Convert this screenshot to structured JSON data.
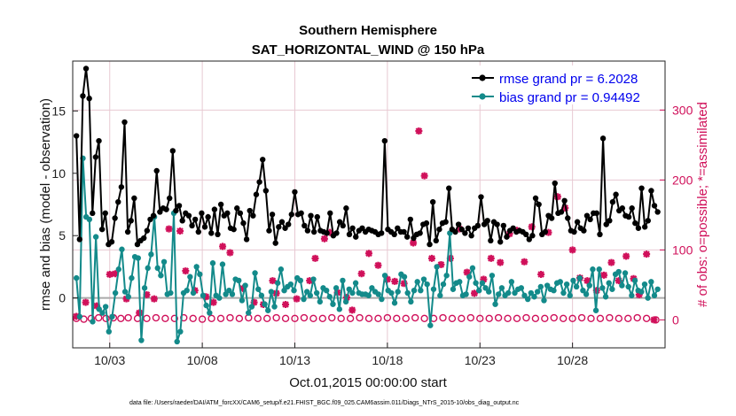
{
  "chart_data": {
    "type": "line",
    "title": "Southern Hemisphere",
    "subtitle": "SAT_HORIZONTAL_WIND @ 150 hPa",
    "xlabel": "Oct.01,2015 00:00:00 start",
    "ylabel": "rmse and bias (model - observation)",
    "ylabel_right": "# of obs: o=possible; *=assimilated",
    "footnote": "data file: /Users/raeder/DAI/ATM_forcXX/CAM6_setup/f.e21.FHIST_BGC.f09_025.CAM6assim.011/Diags_NTrS_2015-10/obs_diag_output.nc",
    "xlim": [
      1.0,
      33.0
    ],
    "ylim": [
      -4,
      19
    ],
    "ylim_right": [
      -40,
      370
    ],
    "x_tick_values": [
      3,
      8,
      13,
      18,
      23,
      28
    ],
    "x_tick_labels": [
      "10/03",
      "10/08",
      "10/13",
      "10/18",
      "10/23",
      "10/28"
    ],
    "y_tick_labels": [
      "0",
      "5",
      "10",
      "15"
    ],
    "y_right_tick_labels": [
      "0",
      "100",
      "200",
      "300"
    ],
    "colors": {
      "rmse": "#000000",
      "bias": "#138a8a",
      "obs": "#d0105a",
      "zero_line": "#aaaaaa"
    },
    "series": [
      {
        "name": "rmse grand pr = 6.2028",
        "values": [
          13.0,
          4.7,
          16.2,
          18.4,
          16.0,
          6.8,
          11.3,
          12.6,
          5.5,
          6.8,
          4.3,
          4.5,
          6.4,
          7.7,
          8.9,
          14.1,
          5.3,
          6.2,
          8.0,
          4.3,
          4.6,
          4.8,
          5.4,
          6.3,
          6.6,
          10.2,
          6.9,
          7.2,
          7.1,
          8.0,
          11.8,
          7.0,
          7.4,
          6.2,
          6.8,
          6.6,
          5.8,
          6.3,
          5.3,
          6.8,
          5.7,
          6.5,
          5.2,
          7.1,
          5.1,
          7.5,
          6.6,
          6.8,
          5.6,
          5.5,
          7.2,
          6.8,
          6.0,
          4.7,
          7.0,
          6.6,
          8.3,
          9.3,
          11.1,
          8.6,
          5.4,
          6.7,
          4.4,
          5.7,
          6.1,
          5.6,
          5.9,
          6.7,
          8.5,
          6.7,
          6.8,
          5.8,
          5.4,
          6.6,
          5.3,
          6.5,
          5.4,
          5.3,
          5.2,
          6.8,
          5.0,
          5.2,
          6.1,
          5.8,
          7.2,
          5.1,
          5.6,
          4.9,
          5.4,
          5.6,
          5.3,
          5.5,
          5.4,
          5.3,
          5.1,
          5.2,
          12.6,
          5.5,
          5.3,
          5.1,
          5.6,
          5.3,
          5.3,
          4.9,
          6.3,
          4.8,
          5.1,
          5.2,
          5.9,
          6.0,
          4.3,
          7.7,
          4.6,
          5.5,
          6.0,
          6.1,
          8.8,
          5.5,
          5.3,
          5.9,
          5.5,
          5.2,
          5.6,
          5.0,
          5.6,
          5.8,
          8.1,
          5.9,
          6.2,
          4.6,
          6.1,
          5.9,
          4.5,
          5.8,
          4.9,
          5.4,
          5.6,
          5.3,
          5.4,
          5.3,
          5.1,
          4.7,
          5.0,
          8.0,
          7.5,
          5.1,
          5.3,
          6.6,
          6.4,
          9.2,
          6.8,
          6.9,
          7.8,
          6.4,
          5.4,
          5.3,
          6.1,
          5.6,
          5.4,
          6.6,
          6.3,
          6.8,
          6.8,
          5.1,
          12.8,
          5.9,
          6.2,
          7.7,
          8.3,
          7.0,
          7.2,
          6.6,
          6.5,
          7.2,
          6.0,
          5.6,
          8.8,
          5.7,
          6.2,
          8.6,
          7.4,
          6.9
        ]
      },
      {
        "name": "bias grand pr = 0.94492",
        "values": [
          1.6,
          -1.5,
          11.2,
          6.5,
          6.3,
          -1.9,
          4.9,
          -0.9,
          -1.2,
          -0.7,
          -2.7,
          -1.5,
          0.4,
          2.3,
          3.9,
          0.5,
          0.1,
          1.6,
          3.3,
          3.2,
          -3.4,
          0.8,
          2.4,
          3.5,
          6.5,
          2.4,
          1.8,
          2.9,
          0.3,
          0.4,
          6.8,
          -3.5,
          -2.7,
          0.4,
          0.6,
          1.7,
          0.4,
          2.5,
          1.9,
          0.2,
          -0.6,
          -1.2,
          2.8,
          0.2,
          0.0,
          2.7,
          0.3,
          0.6,
          0.3,
          1.5,
          1.4,
          -0.2,
          1.0,
          -1.2,
          -0.7,
          2.0,
          0.7,
          0.2,
          -0.5,
          -1.0,
          0.5,
          -0.7,
          1.2,
          2.3,
          0.6,
          0.9,
          1.1,
          0.6,
          1.6,
          1.4,
          -0.1,
          0.5,
          0.2,
          1.5,
          0.4,
          -0.3,
          0.8,
          0.6,
          0.1,
          -0.5,
          0.8,
          -0.9,
          1.4,
          -0.3,
          0.7,
          0.4,
          1.2,
          0.4,
          0.3,
          0.3,
          0.2,
          0.8,
          0.5,
          0.3,
          -0.1,
          1.8,
          0.6,
          0.4,
          -0.4,
          0.5,
          1.9,
          1.7,
          0.4,
          -0.3,
          0.6,
          1.3,
          0.6,
          1.5,
          1.1,
          -2.2,
          0.7,
          2.5,
          0.2,
          1.1,
          1.8,
          5.2,
          0.7,
          1.2,
          1.3,
          0.2,
          0.3,
          1.7,
          2.4,
          1.2,
          0.6,
          1.2,
          0.8,
          0.5,
          1.8,
          -0.5,
          0.3,
          0.8,
          0.2,
          0.4,
          1.3,
          0.4,
          0.7,
          0.8,
          0.2,
          -0.1,
          0.4,
          0.1,
          0.5,
          0.9,
          -0.2,
          1.0,
          0.7,
          0.6,
          1.2,
          1.3,
          0.4,
          1.1,
          0.2,
          1.4,
          0.9,
          1.6,
          0.6,
          0.3,
          1.0,
          2.3,
          -1.0,
          2.3,
          0.8,
          0.1,
          1.2,
          0.7,
          1.9,
          2.1,
          1.0,
          2.0,
          0.9,
          0.2,
          1.4,
          0.6,
          0.5,
          1.1,
          0.0,
          1.3,
          0.2,
          0.7
        ]
      }
    ],
    "obs_assimilated": [
      [
        1.2,
        5
      ],
      [
        1.7,
        25
      ],
      [
        2.3,
        20
      ],
      [
        3.0,
        65
      ],
      [
        3.3,
        66
      ],
      [
        3.9,
        30
      ],
      [
        4.6,
        10
      ],
      [
        5.0,
        36
      ],
      [
        5.4,
        30
      ],
      [
        6.2,
        130
      ],
      [
        6.8,
        127
      ],
      [
        7.1,
        70
      ],
      [
        7.6,
        42
      ],
      [
        8.2,
        33
      ],
      [
        8.6,
        25
      ],
      [
        9.1,
        105
      ],
      [
        9.5,
        96
      ],
      [
        10.2,
        45
      ],
      [
        10.8,
        25
      ],
      [
        11.3,
        22
      ],
      [
        11.8,
        56
      ],
      [
        12.0,
        38
      ],
      [
        12.5,
        22
      ],
      [
        13.1,
        30
      ],
      [
        13.8,
        56
      ],
      [
        14.1,
        88
      ],
      [
        14.6,
        116
      ],
      [
        14.9,
        125
      ],
      [
        15.3,
        39
      ],
      [
        15.8,
        32
      ],
      [
        16.1,
        14
      ],
      [
        16.6,
        66
      ],
      [
        17.0,
        95
      ],
      [
        17.5,
        78
      ],
      [
        18.0,
        58
      ],
      [
        18.4,
        55
      ],
      [
        18.9,
        52
      ],
      [
        19.4,
        110
      ],
      [
        19.7,
        270
      ],
      [
        20.0,
        206
      ],
      [
        20.4,
        88
      ],
      [
        20.9,
        79
      ],
      [
        21.4,
        88
      ],
      [
        21.9,
        130
      ],
      [
        22.3,
        68
      ],
      [
        22.7,
        38
      ],
      [
        23.2,
        58
      ],
      [
        23.6,
        88
      ],
      [
        24.1,
        82
      ],
      [
        24.6,
        123
      ],
      [
        25.0,
        128
      ],
      [
        25.4,
        83
      ],
      [
        25.8,
        133
      ],
      [
        26.3,
        65
      ],
      [
        26.7,
        125
      ],
      [
        27.2,
        176
      ],
      [
        27.6,
        160
      ],
      [
        28.0,
        100
      ],
      [
        28.4,
        60
      ],
      [
        28.8,
        56
      ],
      [
        29.3,
        42
      ],
      [
        29.7,
        64
      ],
      [
        30.1,
        82
      ],
      [
        30.5,
        56
      ],
      [
        30.9,
        91
      ],
      [
        31.3,
        59
      ],
      [
        31.6,
        36
      ],
      [
        32.0,
        94
      ],
      [
        32.4,
        0
      ]
    ],
    "obs_possible": [
      [
        1.2,
        2
      ],
      [
        1.6,
        1
      ],
      [
        2.0,
        2
      ],
      [
        2.4,
        3
      ],
      [
        2.8,
        2
      ],
      [
        3.2,
        3
      ],
      [
        3.6,
        2
      ],
      [
        4.0,
        3
      ],
      [
        4.5,
        2
      ],
      [
        5.0,
        2
      ],
      [
        5.5,
        3
      ],
      [
        6.0,
        2
      ],
      [
        6.5,
        2
      ],
      [
        7.0,
        3
      ],
      [
        7.5,
        2
      ],
      [
        8.0,
        1
      ],
      [
        8.5,
        2
      ],
      [
        9.0,
        2
      ],
      [
        9.5,
        3
      ],
      [
        10.0,
        2
      ],
      [
        10.5,
        3
      ],
      [
        11.0,
        2
      ],
      [
        11.5,
        2
      ],
      [
        12.0,
        3
      ],
      [
        12.5,
        2
      ],
      [
        13.0,
        2
      ],
      [
        13.5,
        3
      ],
      [
        14.0,
        2
      ],
      [
        14.5,
        2
      ],
      [
        15.0,
        3
      ],
      [
        15.5,
        2
      ],
      [
        16.0,
        2
      ],
      [
        16.5,
        3
      ],
      [
        17.0,
        2
      ],
      [
        17.5,
        2
      ],
      [
        18.0,
        3
      ],
      [
        18.5,
        2
      ],
      [
        19.0,
        2
      ],
      [
        19.5,
        3
      ],
      [
        20.0,
        2
      ],
      [
        20.5,
        2
      ],
      [
        21.0,
        3
      ],
      [
        21.5,
        2
      ],
      [
        22.0,
        2
      ],
      [
        22.5,
        3
      ],
      [
        23.0,
        2
      ],
      [
        23.5,
        2
      ],
      [
        24.0,
        3
      ],
      [
        24.5,
        2
      ],
      [
        25.0,
        2
      ],
      [
        25.5,
        3
      ],
      [
        26.0,
        2
      ],
      [
        26.5,
        2
      ],
      [
        27.0,
        3
      ],
      [
        27.5,
        2
      ],
      [
        28.0,
        2
      ],
      [
        28.5,
        3
      ],
      [
        29.0,
        2
      ],
      [
        29.5,
        2
      ],
      [
        30.0,
        3
      ],
      [
        30.5,
        2
      ],
      [
        31.0,
        2
      ],
      [
        31.5,
        3
      ],
      [
        32.0,
        2
      ],
      [
        32.5,
        0
      ]
    ]
  }
}
